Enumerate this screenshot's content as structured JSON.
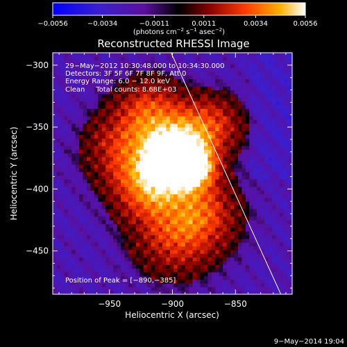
{
  "chart_data": {
    "type": "heatmap",
    "title": "Reconstructed RHESSI Image",
    "xlabel": "Heliocentric X (arcsec)",
    "ylabel": "Heliocentric Y (arcsec)",
    "xlim": [
      -995,
      -805
    ],
    "ylim": [
      -485,
      -290
    ],
    "x_ticks": [
      -950,
      -900,
      -850
    ],
    "x_tick_labels": [
      "−950",
      "−900",
      "−850"
    ],
    "y_ticks": [
      -300,
      -350,
      -400,
      -450
    ],
    "y_tick_labels": [
      "−300",
      "−350",
      "−400",
      "−450"
    ],
    "colorbar": {
      "min": -0.0056,
      "max": 0.0056,
      "ticks": [
        -0.0056,
        -0.0034,
        -0.0011,
        0.0011,
        0.0034,
        0.0056
      ],
      "tick_labels": [
        "−0.0056",
        "−0.0034",
        "−0.0011",
        "0.0011",
        "0.0034",
        "0.0056"
      ],
      "units_label": "(photons cm",
      "units_exp1": "−2",
      "units_mid": " s",
      "units_exp2": "−1",
      "units_mid2": " asec",
      "units_exp3": "−2",
      "units_end": ")"
    },
    "annotations": [
      "29−May−2012 10:30:48.000 to 10:34:30.000",
      "Detectors: 3F 5F 6F 7F 8F 9F, Att 0",
      "Energy Range: 6.0 − 12.0 keV",
      "Clean     Total counts: 8.68E+03"
    ],
    "peak_label": "Position of Peak = [−890,−385]",
    "peak": {
      "x": -890,
      "y": -385
    },
    "limb_line": [
      [
        -902,
        -288
      ],
      [
        -814,
        -485
      ]
    ],
    "footer": "9−May−2014 19:04",
    "colors": {
      "background": "#000000",
      "limb": "#ffffff",
      "text": "#ffffff"
    }
  }
}
